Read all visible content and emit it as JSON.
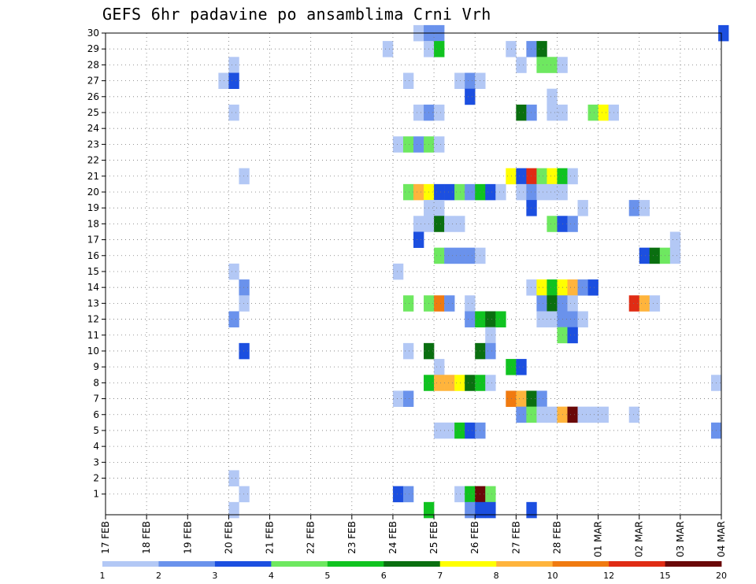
{
  "title": "GEFS 6hr padavine po ansamblima Crni Vrh",
  "chart_data": {
    "type": "heatmap",
    "title": "GEFS 6hr padavine po ansamblima Crni Vrh",
    "xlabel": "",
    "ylabel": "",
    "x_ticks": [
      "17 FEB",
      "18 FEB",
      "19 FEB",
      "20 FEB",
      "21 FEB",
      "22 FEB",
      "23 FEB",
      "24 FEB",
      "25 FEB",
      "26 FEB",
      "27 FEB",
      "28 FEB",
      "01 MAR",
      "02 MAR",
      "03 MAR",
      "04 MAR"
    ],
    "y_ticks": [
      1,
      2,
      3,
      4,
      5,
      6,
      7,
      8,
      9,
      10,
      11,
      12,
      13,
      14,
      15,
      16,
      17,
      18,
      19,
      20,
      21,
      22,
      23,
      24,
      25,
      26,
      27,
      28,
      29,
      30
    ],
    "xlim": [
      0,
      60
    ],
    "ylim": [
      0,
      30
    ],
    "grid": true,
    "colorbar": {
      "labels": [
        "1",
        "2",
        "3",
        "4",
        "5",
        "6",
        "7",
        "8",
        "10",
        "12",
        "15",
        "20"
      ],
      "colors": [
        "#b3c8f5",
        "#6a92ec",
        "#1c4fe0",
        "#6ee860",
        "#10c320",
        "#0a6f10",
        "#ffff00",
        "#ffb43c",
        "#f07a10",
        "#e02c14",
        "#6a0808"
      ]
    },
    "cells": [
      {
        "member": 30,
        "t": 30,
        "c": 1
      },
      {
        "member": 30,
        "t": 31,
        "c": 2
      },
      {
        "member": 30,
        "t": 32,
        "c": 2
      },
      {
        "member": 30,
        "t": 59.7,
        "c": 3
      },
      {
        "member": 29,
        "t": 27,
        "c": 1
      },
      {
        "member": 29,
        "t": 31,
        "c": 1
      },
      {
        "member": 29,
        "t": 32,
        "c": 5
      },
      {
        "member": 29,
        "t": 39,
        "c": 1
      },
      {
        "member": 29,
        "t": 41,
        "c": 2
      },
      {
        "member": 29,
        "t": 42,
        "c": 6
      },
      {
        "member": 28,
        "t": 12,
        "c": 1
      },
      {
        "member": 28,
        "t": 40,
        "c": 1
      },
      {
        "member": 28,
        "t": 42,
        "c": 4
      },
      {
        "member": 28,
        "t": 43,
        "c": 4
      },
      {
        "member": 28,
        "t": 44,
        "c": 1
      },
      {
        "member": 27,
        "t": 11,
        "c": 1
      },
      {
        "member": 27,
        "t": 12,
        "c": 3
      },
      {
        "member": 27,
        "t": 29,
        "c": 1
      },
      {
        "member": 27,
        "t": 34,
        "c": 1
      },
      {
        "member": 27,
        "t": 35,
        "c": 2
      },
      {
        "member": 27,
        "t": 36,
        "c": 1
      },
      {
        "member": 26,
        "t": 35,
        "c": 3
      },
      {
        "member": 26,
        "t": 43,
        "c": 1
      },
      {
        "member": 25,
        "t": 12,
        "c": 1
      },
      {
        "member": 25,
        "t": 30,
        "c": 1
      },
      {
        "member": 25,
        "t": 31,
        "c": 2
      },
      {
        "member": 25,
        "t": 32,
        "c": 1
      },
      {
        "member": 25,
        "t": 40,
        "c": 6
      },
      {
        "member": 25,
        "t": 41,
        "c": 2
      },
      {
        "member": 25,
        "t": 43,
        "c": 1
      },
      {
        "member": 25,
        "t": 44,
        "c": 1
      },
      {
        "member": 25,
        "t": 47,
        "c": 4
      },
      {
        "member": 25,
        "t": 48,
        "c": 7
      },
      {
        "member": 25,
        "t": 49,
        "c": 1
      },
      {
        "member": 23,
        "t": 28,
        "c": 1
      },
      {
        "member": 23,
        "t": 29,
        "c": 4
      },
      {
        "member": 23,
        "t": 30,
        "c": 2
      },
      {
        "member": 23,
        "t": 31,
        "c": 4
      },
      {
        "member": 23,
        "t": 32,
        "c": 1
      },
      {
        "member": 21,
        "t": 13,
        "c": 1
      },
      {
        "member": 21,
        "t": 39,
        "c": 7
      },
      {
        "member": 21,
        "t": 40,
        "c": 3
      },
      {
        "member": 21,
        "t": 41,
        "c": 10
      },
      {
        "member": 21,
        "t": 42,
        "c": 4
      },
      {
        "member": 21,
        "t": 43,
        "c": 7
      },
      {
        "member": 21,
        "t": 44,
        "c": 5
      },
      {
        "member": 21,
        "t": 45,
        "c": 1
      },
      {
        "member": 20,
        "t": 29,
        "c": 4
      },
      {
        "member": 20,
        "t": 30,
        "c": 8
      },
      {
        "member": 20,
        "t": 31,
        "c": 7
      },
      {
        "member": 20,
        "t": 32,
        "c": 3
      },
      {
        "member": 20,
        "t": 33,
        "c": 3
      },
      {
        "member": 20,
        "t": 34,
        "c": 4
      },
      {
        "member": 20,
        "t": 35,
        "c": 2
      },
      {
        "member": 20,
        "t": 36,
        "c": 5
      },
      {
        "member": 20,
        "t": 37,
        "c": 3
      },
      {
        "member": 20,
        "t": 38,
        "c": 1
      },
      {
        "member": 20,
        "t": 40,
        "c": 1
      },
      {
        "member": 20,
        "t": 41,
        "c": 2
      },
      {
        "member": 20,
        "t": 42,
        "c": 1
      },
      {
        "member": 20,
        "t": 43,
        "c": 1
      },
      {
        "member": 20,
        "t": 44,
        "c": 1
      },
      {
        "member": 19,
        "t": 31,
        "c": 1
      },
      {
        "member": 19,
        "t": 32,
        "c": 1
      },
      {
        "member": 19,
        "t": 41,
        "c": 3
      },
      {
        "member": 19,
        "t": 46,
        "c": 1
      },
      {
        "member": 19,
        "t": 51,
        "c": 2
      },
      {
        "member": 19,
        "t": 52,
        "c": 1
      },
      {
        "member": 18,
        "t": 30,
        "c": 1
      },
      {
        "member": 18,
        "t": 31,
        "c": 1
      },
      {
        "member": 18,
        "t": 32,
        "c": 6
      },
      {
        "member": 18,
        "t": 33,
        "c": 1
      },
      {
        "member": 18,
        "t": 34,
        "c": 1
      },
      {
        "member": 18,
        "t": 43,
        "c": 4
      },
      {
        "member": 18,
        "t": 44,
        "c": 3
      },
      {
        "member": 18,
        "t": 45,
        "c": 2
      },
      {
        "member": 17,
        "t": 30,
        "c": 3
      },
      {
        "member": 17,
        "t": 55,
        "c": 1
      },
      {
        "member": 16,
        "t": 32,
        "c": 4
      },
      {
        "member": 16,
        "t": 33,
        "c": 2
      },
      {
        "member": 16,
        "t": 34,
        "c": 2
      },
      {
        "member": 16,
        "t": 35,
        "c": 2
      },
      {
        "member": 16,
        "t": 36,
        "c": 1
      },
      {
        "member": 16,
        "t": 52,
        "c": 3
      },
      {
        "member": 16,
        "t": 53,
        "c": 6
      },
      {
        "member": 16,
        "t": 54,
        "c": 4
      },
      {
        "member": 16,
        "t": 55,
        "c": 1
      },
      {
        "member": 15,
        "t": 12,
        "c": 1
      },
      {
        "member": 15,
        "t": 28,
        "c": 1
      },
      {
        "member": 14,
        "t": 13,
        "c": 2
      },
      {
        "member": 14,
        "t": 41,
        "c": 1
      },
      {
        "member": 14,
        "t": 42,
        "c": 7
      },
      {
        "member": 14,
        "t": 43,
        "c": 5
      },
      {
        "member": 14,
        "t": 44,
        "c": 7
      },
      {
        "member": 14,
        "t": 45,
        "c": 8
      },
      {
        "member": 14,
        "t": 46,
        "c": 2
      },
      {
        "member": 14,
        "t": 47,
        "c": 3
      },
      {
        "member": 13,
        "t": 13,
        "c": 1
      },
      {
        "member": 13,
        "t": 29,
        "c": 4
      },
      {
        "member": 13,
        "t": 31,
        "c": 4
      },
      {
        "member": 13,
        "t": 32,
        "c": 9
      },
      {
        "member": 13,
        "t": 33,
        "c": 2
      },
      {
        "member": 13,
        "t": 35,
        "c": 1
      },
      {
        "member": 13,
        "t": 42,
        "c": 2
      },
      {
        "member": 13,
        "t": 43,
        "c": 6
      },
      {
        "member": 13,
        "t": 44,
        "c": 2
      },
      {
        "member": 13,
        "t": 45,
        "c": 1
      },
      {
        "member": 13,
        "t": 51,
        "c": 10
      },
      {
        "member": 13,
        "t": 52,
        "c": 8
      },
      {
        "member": 13,
        "t": 53,
        "c": 1
      },
      {
        "member": 12,
        "t": 12,
        "c": 2
      },
      {
        "member": 12,
        "t": 35,
        "c": 2
      },
      {
        "member": 12,
        "t": 36,
        "c": 5
      },
      {
        "member": 12,
        "t": 37,
        "c": 6
      },
      {
        "member": 12,
        "t": 38,
        "c": 5
      },
      {
        "member": 12,
        "t": 42,
        "c": 1
      },
      {
        "member": 12,
        "t": 43,
        "c": 1
      },
      {
        "member": 12,
        "t": 44,
        "c": 2
      },
      {
        "member": 12,
        "t": 45,
        "c": 2
      },
      {
        "member": 12,
        "t": 46,
        "c": 1
      },
      {
        "member": 11,
        "t": 37,
        "c": 1
      },
      {
        "member": 11,
        "t": 44,
        "c": 4
      },
      {
        "member": 11,
        "t": 45,
        "c": 3
      },
      {
        "member": 10,
        "t": 13,
        "c": 3
      },
      {
        "member": 10,
        "t": 29,
        "c": 1
      },
      {
        "member": 10,
        "t": 31,
        "c": 6
      },
      {
        "member": 10,
        "t": 36,
        "c": 6
      },
      {
        "member": 10,
        "t": 37,
        "c": 2
      },
      {
        "member": 9,
        "t": 32,
        "c": 1
      },
      {
        "member": 9,
        "t": 39,
        "c": 5
      },
      {
        "member": 9,
        "t": 40,
        "c": 3
      },
      {
        "member": 8,
        "t": 31,
        "c": 5
      },
      {
        "member": 8,
        "t": 32,
        "c": 8
      },
      {
        "member": 8,
        "t": 33,
        "c": 8
      },
      {
        "member": 8,
        "t": 34,
        "c": 7
      },
      {
        "member": 8,
        "t": 35,
        "c": 6
      },
      {
        "member": 8,
        "t": 36,
        "c": 5
      },
      {
        "member": 8,
        "t": 37,
        "c": 1
      },
      {
        "member": 8,
        "t": 59,
        "c": 1
      },
      {
        "member": 7,
        "t": 28,
        "c": 1
      },
      {
        "member": 7,
        "t": 29,
        "c": 2
      },
      {
        "member": 7,
        "t": 39,
        "c": 9
      },
      {
        "member": 7,
        "t": 40,
        "c": 8
      },
      {
        "member": 7,
        "t": 41,
        "c": 6
      },
      {
        "member": 7,
        "t": 42,
        "c": 2
      },
      {
        "member": 6,
        "t": 40,
        "c": 2
      },
      {
        "member": 6,
        "t": 41,
        "c": 4
      },
      {
        "member": 6,
        "t": 42,
        "c": 1
      },
      {
        "member": 6,
        "t": 43,
        "c": 1
      },
      {
        "member": 6,
        "t": 44,
        "c": 8
      },
      {
        "member": 6,
        "t": 45,
        "c": 11
      },
      {
        "member": 6,
        "t": 46,
        "c": 1
      },
      {
        "member": 6,
        "t": 47,
        "c": 1
      },
      {
        "member": 6,
        "t": 48,
        "c": 1
      },
      {
        "member": 6,
        "t": 51,
        "c": 1
      },
      {
        "member": 5,
        "t": 32,
        "c": 1
      },
      {
        "member": 5,
        "t": 33,
        "c": 1
      },
      {
        "member": 5,
        "t": 34,
        "c": 5
      },
      {
        "member": 5,
        "t": 35,
        "c": 3
      },
      {
        "member": 5,
        "t": 36,
        "c": 2
      },
      {
        "member": 5,
        "t": 59,
        "c": 2
      },
      {
        "member": 2,
        "t": 12,
        "c": 1
      },
      {
        "member": 1,
        "t": 13,
        "c": 1
      },
      {
        "member": 1,
        "t": 28,
        "c": 3
      },
      {
        "member": 1,
        "t": 29,
        "c": 2
      },
      {
        "member": 1,
        "t": 34,
        "c": 1
      },
      {
        "member": 1,
        "t": 35,
        "c": 5
      },
      {
        "member": 1,
        "t": 36,
        "c": 11
      },
      {
        "member": 1,
        "t": 37,
        "c": 4
      },
      {
        "member": 0,
        "t": 12,
        "c": 1
      },
      {
        "member": 0,
        "t": 31,
        "c": 5
      },
      {
        "member": 0,
        "t": 35,
        "c": 2
      },
      {
        "member": 0,
        "t": 36,
        "c": 3
      },
      {
        "member": 0,
        "t": 37,
        "c": 3
      },
      {
        "member": 0,
        "t": 41,
        "c": 3
      }
    ]
  }
}
